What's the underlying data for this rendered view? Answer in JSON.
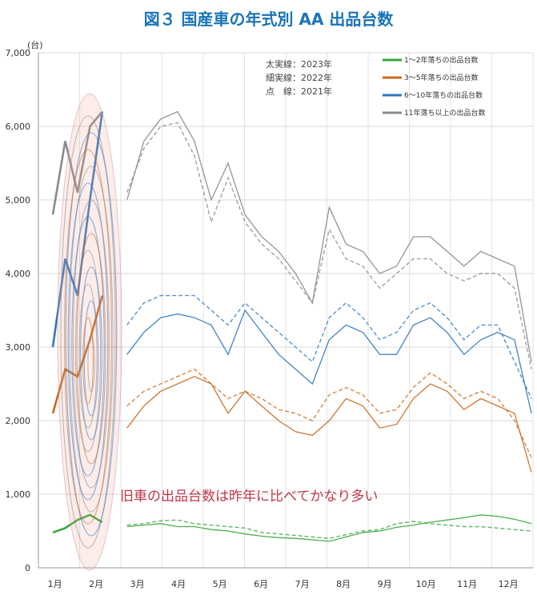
{
  "chart_data": {
    "type": "line",
    "title": "図３ 国産車の年式別 AA 出品台数",
    "y_unit": "(台)",
    "ylim": [
      0,
      7000
    ],
    "yticks": [
      "0",
      "1,000",
      "2,000",
      "3,000",
      "4,000",
      "5,000",
      "6,000",
      "7,000"
    ],
    "ytick_values": [
      0,
      1000,
      2000,
      3000,
      4000,
      5000,
      6000,
      7000
    ],
    "categories": [
      "1月",
      "2月",
      "3月",
      "4月",
      "5月",
      "6月",
      "7月",
      "8月",
      "9月",
      "10月",
      "11月",
      "12月"
    ],
    "line_style_notes": [
      "太実線：2023年",
      "細実線：2022年",
      "点　線：2021年"
    ],
    "annotation": "旧車の出品台数は昨年に比べてかなり多い",
    "grid": true,
    "legend_position": "top-right",
    "series": [
      {
        "name": "1～2年落ちの出品台数",
        "color": "#3aa63a",
        "y2023": [
          480,
          540,
          650,
          720,
          620
        ],
        "y2022": [
          560,
          580,
          600,
          560,
          560,
          520,
          500,
          460,
          430,
          410,
          400,
          380,
          360,
          420,
          480,
          500,
          550,
          580,
          620,
          650,
          680,
          720,
          700,
          660,
          600
        ],
        "y2021": [
          580,
          600,
          640,
          650,
          600,
          580,
          560,
          540,
          480,
          460,
          440,
          420,
          400,
          450,
          500,
          520,
          600,
          630,
          600,
          580,
          560,
          560,
          540,
          520,
          500
        ]
      },
      {
        "name": "3～5年落ちの出品台数",
        "color": "#c8691c",
        "y2023": [
          2100,
          2700,
          2600,
          3100,
          3700
        ],
        "y2022": [
          1900,
          2200,
          2400,
          2500,
          2600,
          2500,
          2100,
          2400,
          2200,
          2000,
          1850,
          1800,
          2000,
          2300,
          2200,
          1900,
          1950,
          2300,
          2500,
          2400,
          2150,
          2300,
          2200,
          2100,
          1300
        ],
        "y2021": [
          2200,
          2400,
          2500,
          2600,
          2700,
          2500,
          2300,
          2400,
          2300,
          2150,
          2100,
          2000,
          2350,
          2450,
          2350,
          2100,
          2150,
          2450,
          2650,
          2500,
          2300,
          2400,
          2300,
          2000,
          1500
        ]
      },
      {
        "name": "6～10年落ちの出品台数",
        "color": "#2f78bf",
        "y2023": [
          3000,
          4200,
          3700,
          5000,
          6200
        ],
        "y2022": [
          2900,
          3200,
          3400,
          3450,
          3400,
          3300,
          2900,
          3500,
          3200,
          2900,
          2700,
          2500,
          3100,
          3300,
          3200,
          2900,
          2900,
          3300,
          3400,
          3200,
          2900,
          3100,
          3200,
          3100,
          2100
        ],
        "y2021": [
          3300,
          3600,
          3700,
          3700,
          3700,
          3500,
          3300,
          3600,
          3400,
          3200,
          3000,
          2800,
          3400,
          3600,
          3400,
          3100,
          3200,
          3500,
          3600,
          3400,
          3100,
          3300,
          3300,
          2800,
          2300
        ]
      },
      {
        "name": "11年落ち以上の出品台数",
        "color": "#8a8a8a",
        "y2023": [
          4800,
          5800,
          5100,
          6000,
          6200
        ],
        "y2022": [
          5000,
          5800,
          6100,
          6200,
          5800,
          5000,
          5500,
          4800,
          4500,
          4300,
          4000,
          3600,
          4900,
          4400,
          4300,
          4000,
          4100,
          4500,
          4500,
          4300,
          4100,
          4300,
          4200,
          4100,
          2800
        ],
        "y2021": [
          5100,
          5700,
          6000,
          6050,
          5600,
          4700,
          5300,
          4700,
          4400,
          4200,
          3900,
          3600,
          4600,
          4200,
          4100,
          3800,
          4000,
          4200,
          4200,
          4000,
          3900,
          4000,
          4000,
          3800,
          2700
        ]
      }
    ]
  }
}
